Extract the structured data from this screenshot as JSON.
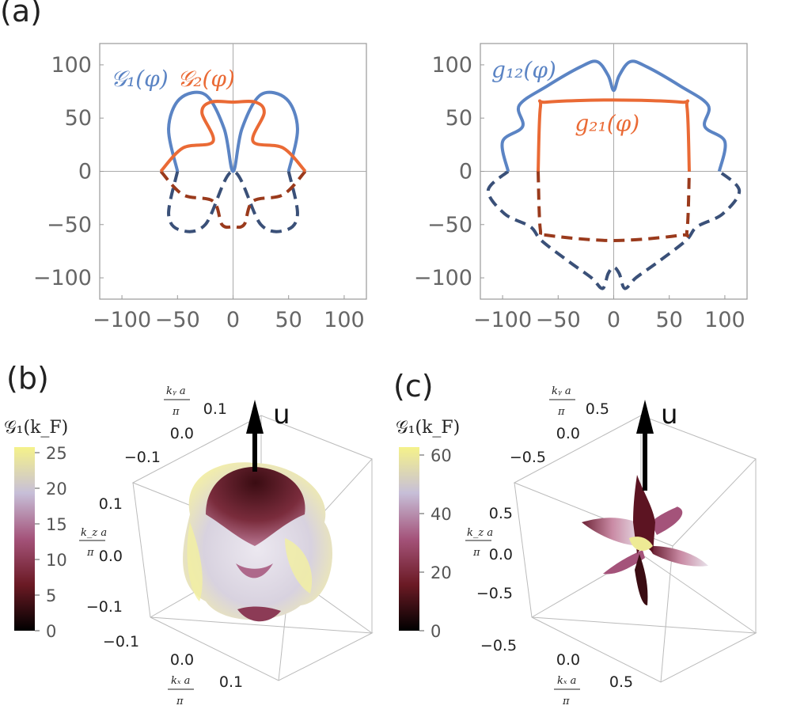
{
  "panels": {
    "a_label": "(a)",
    "b_label": "(b)",
    "c_label": "(c)"
  },
  "chart_data": [
    {
      "type": "line",
      "panel": "a-left",
      "title": "",
      "xlabel": "",
      "ylabel": "",
      "xlim": [
        -120,
        120
      ],
      "ylim": [
        -120,
        120
      ],
      "xticks": [
        "−100",
        "−50",
        "0",
        "50",
        "100"
      ],
      "yticks": [
        "100",
        "50",
        "0",
        "−50",
        "−100"
      ],
      "series": [
        {
          "name": "𝒢₁(φ)",
          "color": "#5b84c4",
          "style": "solid",
          "points": [
            [
              -50,
              0
            ],
            [
              -58,
              40
            ],
            [
              -48,
              68
            ],
            [
              -25,
              72
            ],
            [
              -8,
              40
            ],
            [
              0,
              0
            ],
            [
              8,
              40
            ],
            [
              25,
              72
            ],
            [
              48,
              68
            ],
            [
              58,
              40
            ],
            [
              50,
              0
            ]
          ]
        },
        {
          "name": "𝒢₂(φ)",
          "color": "#ea6a35",
          "style": "solid",
          "points": [
            [
              -65,
              0
            ],
            [
              -45,
              22
            ],
            [
              -18,
              28
            ],
            [
              -28,
              55
            ],
            [
              -20,
              65
            ],
            [
              0,
              65
            ],
            [
              20,
              65
            ],
            [
              28,
              55
            ],
            [
              18,
              28
            ],
            [
              45,
              22
            ],
            [
              65,
              0
            ]
          ]
        }
      ],
      "dashed_series": [
        {
          "color": "#3a5078",
          "points": [
            [
              -50,
              0
            ],
            [
              -58,
              -40
            ],
            [
              -48,
              -55
            ],
            [
              -25,
              -50
            ],
            [
              0,
              0
            ],
            [
              25,
              -50
            ],
            [
              48,
              -55
            ],
            [
              58,
              -40
            ],
            [
              50,
              0
            ]
          ]
        },
        {
          "color": "#9a3a1c",
          "points": [
            [
              -65,
              0
            ],
            [
              -45,
              -22
            ],
            [
              -18,
              -28
            ],
            [
              -10,
              -50
            ],
            [
              0,
              -52
            ],
            [
              10,
              -50
            ],
            [
              18,
              -28
            ],
            [
              45,
              -22
            ],
            [
              65,
              0
            ]
          ]
        }
      ],
      "labels": [
        {
          "text": "𝒢₁(φ)",
          "x": -110,
          "y": 80,
          "color": "#5b84c4"
        },
        {
          "text": "𝒢₂(φ)",
          "x": -50,
          "y": 80,
          "color": "#ea6a35"
        }
      ]
    },
    {
      "type": "line",
      "panel": "a-right",
      "title": "",
      "xlabel": "",
      "ylabel": "",
      "xlim": [
        -120,
        120
      ],
      "ylim": [
        -120,
        120
      ],
      "xticks": [
        "−100",
        "−50",
        "0",
        "50",
        "100"
      ],
      "yticks": [
        "100",
        "50",
        "0",
        "−50",
        "−100"
      ],
      "series": [
        {
          "name": "g₁₂(φ)",
          "color": "#5b84c4",
          "style": "solid",
          "points": [
            [
              -95,
              0
            ],
            [
              -100,
              28
            ],
            [
              -82,
              42
            ],
            [
              -85,
              62
            ],
            [
              -60,
              80
            ],
            [
              -30,
              98
            ],
            [
              -15,
              103
            ],
            [
              -5,
              90
            ],
            [
              0,
              76
            ],
            [
              5,
              90
            ],
            [
              15,
              103
            ],
            [
              30,
              98
            ],
            [
              60,
              80
            ],
            [
              85,
              62
            ],
            [
              82,
              42
            ],
            [
              100,
              28
            ],
            [
              95,
              0
            ]
          ]
        },
        {
          "name": "g₂₁(φ)",
          "color": "#ea6a35",
          "style": "solid",
          "points": [
            [
              -68,
              0
            ],
            [
              -66,
              60
            ],
            [
              -60,
              65
            ],
            [
              0,
              67
            ],
            [
              60,
              65
            ],
            [
              66,
              60
            ],
            [
              68,
              0
            ]
          ]
        }
      ],
      "dashed_series": [
        {
          "color": "#3a5078",
          "points": [
            [
              -95,
              0
            ],
            [
              -113,
              -18
            ],
            [
              -98,
              -40
            ],
            [
              -75,
              -52
            ],
            [
              -65,
              -65
            ],
            [
              -40,
              -85
            ],
            [
              -20,
              -100
            ],
            [
              -10,
              -110
            ],
            [
              -5,
              -96
            ],
            [
              0,
              -90
            ],
            [
              5,
              -96
            ],
            [
              10,
              -110
            ],
            [
              20,
              -100
            ],
            [
              40,
              -85
            ],
            [
              65,
              -65
            ],
            [
              75,
              -52
            ],
            [
              98,
              -40
            ],
            [
              113,
              -18
            ],
            [
              95,
              0
            ]
          ]
        },
        {
          "color": "#9a3a1c",
          "points": [
            [
              -68,
              0
            ],
            [
              -66,
              -55
            ],
            [
              -60,
              -60
            ],
            [
              0,
              -65
            ],
            [
              60,
              -60
            ],
            [
              66,
              -55
            ],
            [
              68,
              0
            ]
          ]
        }
      ],
      "labels": [
        {
          "text": "g₁₂(φ)",
          "x": -110,
          "y": 88,
          "color": "#5b84c4"
        },
        {
          "text": "g₂₁(φ)",
          "x": -35,
          "y": 38,
          "color": "#ea6a35"
        }
      ]
    },
    {
      "type": "heatmap",
      "panel": "b",
      "title": "𝒢₁(k_F)",
      "colorbar_ticks": [
        "25",
        "20",
        "15",
        "10",
        "5",
        "0"
      ],
      "colorbar_range": [
        0,
        25
      ],
      "axis_labels": {
        "kx": "kₓa/π",
        "ky": "k_y a/π",
        "kz": "k_z a/π"
      },
      "ky_ticks": [
        "0.1",
        "0.0",
        "−0.1"
      ],
      "kz_ticks": [
        "0.1",
        "0.0",
        "−0.1"
      ],
      "kx_ticks": [
        "−0.1",
        "0.0",
        "0.1"
      ],
      "arrow_label": "u"
    },
    {
      "type": "heatmap",
      "panel": "c",
      "title": "𝒢₁(k_F)",
      "colorbar_ticks": [
        "60",
        "40",
        "20",
        "0"
      ],
      "colorbar_range": [
        0,
        60
      ],
      "axis_labels": {
        "kx": "kₓa/π",
        "ky": "k_y a/π",
        "kz": "k_z a/π"
      },
      "ky_ticks": [
        "0.5",
        "0.0",
        "−0.5"
      ],
      "kz_ticks": [
        "0.5",
        "0.0",
        "−0.5"
      ],
      "kx_ticks": [
        "−0.5",
        "0.0",
        "0.5"
      ],
      "arrow_label": "u"
    }
  ]
}
